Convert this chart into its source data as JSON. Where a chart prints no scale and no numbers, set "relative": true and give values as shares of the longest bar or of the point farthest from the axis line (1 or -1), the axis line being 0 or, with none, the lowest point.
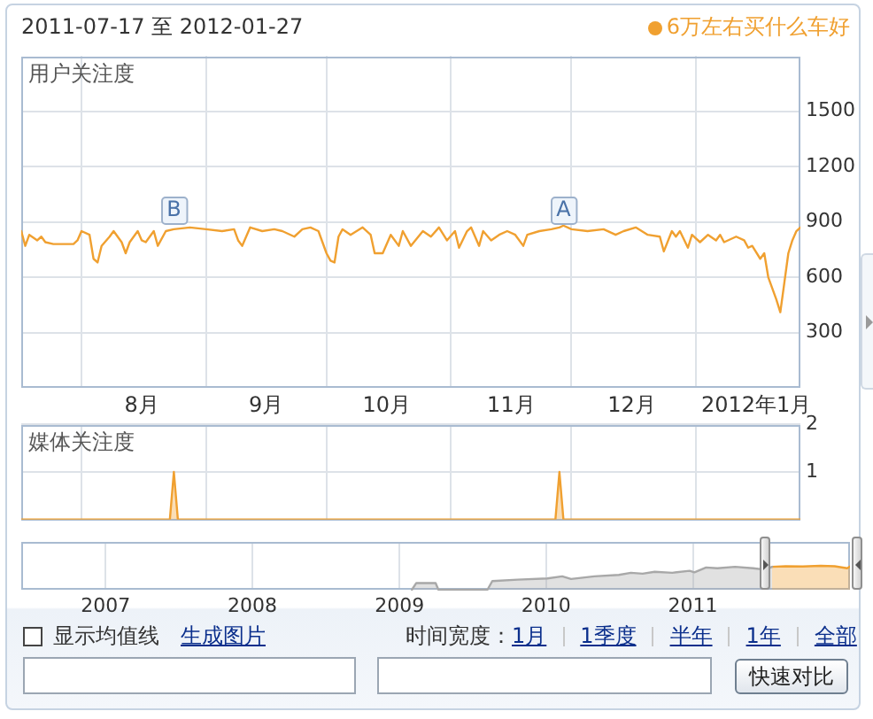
{
  "chart_data": [
    {
      "type": "line",
      "title": "2011-07-17 至 2012-01-27",
      "ylabel": "用户关注度",
      "legend": "top right",
      "grid": true,
      "x": [
        "2011-07-17",
        "2011-07-18",
        "2011-07-19",
        "2011-07-21",
        "2011-07-22",
        "2011-07-23",
        "2011-07-25",
        "2011-07-30",
        "2011-07-31",
        "2011-08-01",
        "2011-08-03",
        "2011-08-04",
        "2011-08-05",
        "2011-08-06",
        "2011-08-08",
        "2011-08-09",
        "2011-08-11",
        "2011-08-12",
        "2011-08-13",
        "2011-08-15",
        "2011-08-16",
        "2011-08-17",
        "2011-08-19",
        "2011-08-20",
        "2011-08-22",
        "2011-08-24",
        "2011-08-28",
        "2011-09-01",
        "2011-09-05",
        "2011-09-08",
        "2011-09-09",
        "2011-09-10",
        "2011-09-12",
        "2011-09-15",
        "2011-09-18",
        "2011-09-20",
        "2011-09-23",
        "2011-09-25",
        "2011-09-27",
        "2011-09-29",
        "2011-10-01",
        "2011-10-02",
        "2011-10-03",
        "2011-10-04",
        "2011-10-05",
        "2011-10-07",
        "2011-10-10",
        "2011-10-12",
        "2011-10-13",
        "2011-10-15",
        "2011-10-17",
        "2011-10-19",
        "2011-10-20",
        "2011-10-22",
        "2011-10-25",
        "2011-10-27",
        "2011-10-29",
        "2011-10-31",
        "2011-11-02",
        "2011-11-03",
        "2011-11-05",
        "2011-11-06",
        "2011-11-08",
        "2011-11-09",
        "2011-11-11",
        "2011-11-13",
        "2011-11-15",
        "2011-11-17",
        "2011-11-19",
        "2011-11-20",
        "2011-11-23",
        "2011-11-26",
        "2011-11-28",
        "2011-11-29",
        "2011-12-01",
        "2011-12-05",
        "2011-12-09",
        "2011-12-12",
        "2011-12-14",
        "2011-12-17",
        "2011-12-20",
        "2011-12-23",
        "2011-12-24",
        "2011-12-26",
        "2011-12-27",
        "2011-12-28",
        "2011-12-30",
        "2011-12-31",
        "2012-01-02",
        "2012-01-04",
        "2012-01-06",
        "2012-01-07",
        "2012-01-08",
        "2012-01-11",
        "2012-01-13",
        "2012-01-14",
        "2012-01-15",
        "2012-01-17",
        "2012-01-18",
        "2012-01-19",
        "2012-01-21",
        "2012-01-22",
        "2012-01-23",
        "2012-01-24",
        "2012-01-25",
        "2012-01-26",
        "2012-01-27"
      ],
      "series": [
        {
          "name": "6万左右买什么车好",
          "color": "#f0a030",
          "values": [
            850,
            770,
            830,
            800,
            820,
            790,
            780,
            780,
            800,
            850,
            830,
            700,
            680,
            770,
            820,
            850,
            790,
            730,
            790,
            850,
            800,
            790,
            850,
            770,
            850,
            860,
            870,
            860,
            850,
            860,
            800,
            770,
            870,
            850,
            860,
            850,
            820,
            860,
            870,
            850,
            730,
            690,
            680,
            820,
            860,
            830,
            870,
            830,
            730,
            730,
            830,
            770,
            850,
            770,
            850,
            820,
            870,
            800,
            850,
            760,
            850,
            870,
            770,
            850,
            800,
            830,
            850,
            830,
            770,
            830,
            850,
            860,
            870,
            880,
            860,
            850,
            860,
            830,
            850,
            870,
            830,
            820,
            740,
            850,
            820,
            850,
            760,
            830,
            790,
            830,
            800,
            830,
            790,
            820,
            800,
            760,
            770,
            700,
            730,
            600,
            480,
            410,
            570,
            730,
            800,
            850,
            870
          ]
        }
      ],
      "xlim": [
        "2011-07-17",
        "2012-01-27"
      ],
      "xticks": [
        {
          "value": "2011-08-01",
          "label": null
        },
        {
          "value": "2011-08-16",
          "label": "8月"
        },
        {
          "value": "2011-09-01",
          "label": null
        },
        {
          "value": "2011-09-16",
          "label": "9月"
        },
        {
          "value": "2011-10-01",
          "label": null
        },
        {
          "value": "2011-10-16",
          "label": "10月"
        },
        {
          "value": "2011-11-01",
          "label": null
        },
        {
          "value": "2011-11-16",
          "label": "11月"
        },
        {
          "value": "2011-12-01",
          "label": null
        },
        {
          "value": "2011-12-16",
          "label": "12月"
        },
        {
          "value": "2012-01-01",
          "label": null
        },
        {
          "value": "2012-01-16",
          "label": "2012年1月"
        }
      ],
      "ylim": [
        0,
        1800
      ],
      "yticks": [
        300,
        600,
        900,
        1200,
        1500
      ],
      "annotations": [
        {
          "text": "B",
          "x": "2011-08-24",
          "y": 970
        },
        {
          "text": "A",
          "x": "2011-11-29",
          "y": 970
        }
      ]
    },
    {
      "type": "area",
      "ylabel": "媒体关注度",
      "grid": true,
      "tick_labels": "y",
      "x": [
        "2011-07-17",
        "2011-08-23",
        "2011-08-24",
        "2011-08-25",
        "2011-11-27",
        "2011-11-28",
        "2011-11-29",
        "2012-01-27"
      ],
      "series": [
        {
          "color": "#f0a030",
          "values": [
            0,
            0,
            1,
            0,
            0,
            1,
            0,
            0
          ]
        }
      ],
      "xlim": [
        "2011-07-17",
        "2012-01-27"
      ],
      "xticks": [
        {
          "value": "2011-08-01",
          "label": null
        },
        {
          "value": "2011-09-01",
          "label": null
        },
        {
          "value": "2011-10-01",
          "label": null
        },
        {
          "value": "2011-11-01",
          "label": null
        },
        {
          "value": "2011-12-01",
          "label": null
        },
        {
          "value": "2012-01-01",
          "label": null
        }
      ],
      "ylim": [
        0,
        2
      ],
      "yticks": [
        1,
        2
      ]
    },
    {
      "type": "area",
      "relative": true,
      "grid": "x",
      "series": [
        {
          "color": "#a8a8a8",
          "x": [
            "2009-02-01",
            "2009-02-12",
            "2009-04-01",
            "2009-04-08",
            "2009-08-08",
            "2009-08-20",
            "2009-10-22",
            "2010-01-04",
            "2010-02-10",
            "2010-03-04",
            "2010-05-01",
            "2010-07-01",
            "2010-07-31",
            "2010-08-29",
            "2010-09-28",
            "2010-11-11",
            "2010-12-24",
            "2011-01-05",
            "2011-02-03",
            "2011-03-03",
            "2011-04-16",
            "2011-05-31",
            "2011-07-01",
            "2011-07-17"
          ],
          "values": [
            0,
            0.28,
            0.28,
            0,
            0,
            0.36,
            0.42,
            0.47,
            0.56,
            0.45,
            0.56,
            0.62,
            0.71,
            0.67,
            0.75,
            0.71,
            0.79,
            0.73,
            0.93,
            0.9,
            0.96,
            0.9,
            0.84,
            0.96
          ]
        },
        {
          "color": "#f0a030",
          "x": [
            "2011-07-17",
            "2011-08-20",
            "2011-10-01",
            "2011-11-15",
            "2011-12-20",
            "2012-01-20",
            "2012-01-27"
          ],
          "values": [
            0.96,
            0.98,
            0.97,
            1,
            0.98,
            0.9,
            0.97
          ]
        }
      ],
      "xlim": [
        "2006-06-05",
        "2012-01-27"
      ],
      "xticks": [
        {
          "value": "2007-01-01",
          "label": "2007"
        },
        {
          "value": "2008-01-01",
          "label": "2008"
        },
        {
          "value": "2009-01-01",
          "label": "2009"
        },
        {
          "value": "2010-01-01",
          "label": "2010"
        },
        {
          "value": "2011-01-01",
          "label": "2011"
        }
      ]
    },
    {
      "type": "other",
      "annotations": [
        "显示均值线",
        "生成图片",
        "时间宽度：",
        "1月",
        "1季度",
        "半年",
        "1年",
        "全部",
        "快速对比"
      ]
    }
  ]
}
